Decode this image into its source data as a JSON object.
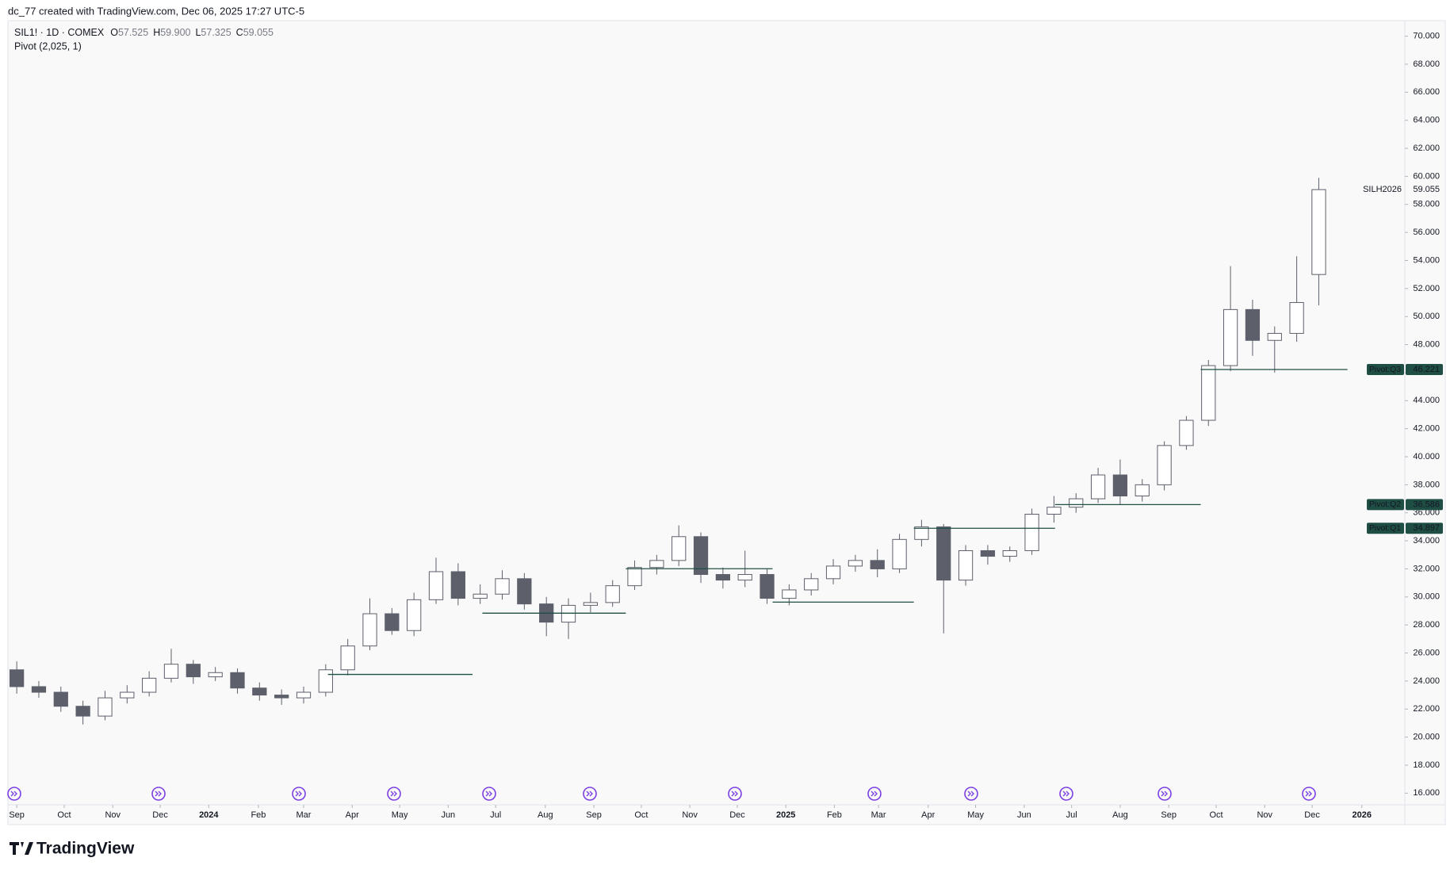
{
  "header": {
    "credit": "dc_77 created with TradingView.com, Dec 06, 2025 17:27 UTC-5",
    "brand": "TradingView"
  },
  "chart_data": {
    "type": "candlestick",
    "symbol": "SIL1! · 1D · COMEX",
    "legend": {
      "labels": [
        "O",
        "H",
        "L",
        "C"
      ],
      "values": [
        57.525,
        59.9,
        57.325,
        59.055
      ],
      "value_labels": [
        "57.525",
        "59.900",
        "57.325",
        "59.055"
      ]
    },
    "indicator": "Pivot (2,025, 1)",
    "colors": {
      "up_fill": "#ffffff",
      "down_fill": "#5d606b",
      "wick": "#5d606b",
      "pivot": "#1f4e45"
    },
    "x": [
      0,
      2,
      4,
      6,
      8,
      10,
      12,
      14,
      16,
      18,
      20,
      22,
      24,
      26,
      28,
      30,
      32,
      34,
      36,
      38,
      40,
      42,
      44,
      46,
      48,
      50,
      52,
      54,
      56,
      58,
      60,
      62,
      64,
      66,
      68,
      70,
      72,
      74,
      76,
      78,
      80,
      82,
      84,
      86,
      88,
      90,
      92,
      94,
      96,
      98,
      100,
      102,
      104,
      106,
      108,
      110,
      112,
      114,
      116,
      118
    ],
    "open": [
      24.8,
      23.6,
      23.2,
      22.2,
      21.5,
      22.8,
      23.2,
      24.2,
      25.2,
      24.3,
      24.6,
      23.5,
      23.0,
      22.8,
      23.2,
      24.8,
      26.5,
      28.8,
      27.6,
      29.8,
      31.8,
      29.9,
      30.2,
      31.3,
      29.5,
      28.2,
      29.4,
      29.6,
      30.8,
      32.1,
      32.6,
      34.3,
      31.6,
      31.2,
      31.6,
      29.9,
      30.5,
      31.3,
      32.2,
      32.6,
      32.0,
      34.1,
      35.0,
      31.2,
      33.3,
      32.9,
      33.3,
      35.9,
      36.4,
      37.0,
      38.7,
      37.2,
      38.0,
      40.8,
      42.6,
      46.5,
      50.5,
      48.3,
      48.8,
      53.0
    ],
    "high": [
      25.4,
      24.0,
      23.6,
      22.6,
      23.3,
      23.7,
      24.7,
      26.3,
      25.5,
      25.0,
      24.9,
      23.9,
      23.4,
      23.6,
      25.2,
      27.0,
      29.9,
      29.2,
      30.3,
      32.8,
      32.4,
      30.9,
      31.9,
      31.7,
      30.0,
      29.9,
      30.3,
      31.2,
      32.6,
      33.0,
      35.1,
      34.6,
      32.1,
      33.3,
      32.0,
      30.9,
      31.7,
      32.7,
      33.0,
      33.4,
      34.5,
      35.5,
      35.2,
      33.7,
      33.7,
      33.6,
      36.3,
      37.2,
      37.4,
      39.2,
      39.8,
      38.4,
      41.1,
      42.9,
      46.9,
      53.6,
      51.2,
      49.3,
      54.3,
      59.9
    ],
    "low": [
      23.1,
      22.8,
      21.8,
      20.9,
      21.2,
      22.4,
      22.9,
      23.9,
      23.8,
      24.0,
      23.1,
      22.6,
      22.3,
      22.4,
      22.9,
      24.4,
      26.2,
      27.3,
      27.2,
      29.5,
      29.4,
      29.5,
      29.8,
      29.1,
      27.2,
      27.0,
      28.9,
      29.3,
      30.5,
      31.6,
      32.2,
      31.0,
      30.6,
      30.7,
      29.5,
      29.4,
      30.1,
      30.9,
      31.8,
      31.4,
      31.7,
      33.6,
      27.4,
      30.8,
      32.3,
      32.5,
      33.0,
      35.3,
      36.0,
      36.7,
      36.6,
      36.8,
      37.6,
      40.5,
      42.2,
      46.1,
      47.2,
      46.0,
      48.2,
      50.8
    ],
    "close": [
      23.6,
      23.2,
      22.2,
      21.5,
      22.8,
      23.2,
      24.2,
      25.2,
      24.3,
      24.6,
      23.5,
      23.0,
      22.8,
      23.2,
      24.8,
      26.5,
      28.8,
      27.6,
      29.8,
      31.8,
      29.9,
      30.2,
      31.3,
      29.5,
      28.2,
      29.4,
      29.6,
      30.8,
      32.1,
      32.6,
      34.3,
      31.6,
      31.2,
      31.6,
      29.9,
      30.5,
      31.3,
      32.2,
      32.6,
      32.0,
      34.1,
      35.0,
      31.2,
      33.3,
      32.9,
      33.3,
      35.9,
      36.4,
      37.0,
      38.7,
      37.2,
      38.0,
      40.8,
      42.6,
      46.5,
      50.5,
      48.3,
      48.8,
      51.0,
      59.055
    ],
    "xlim": [
      -0.8,
      125.8
    ],
    "ylim": [
      15.17,
      71.11
    ],
    "xticks": [
      {
        "value": 0,
        "label": "Sep"
      },
      {
        "value": 4.3,
        "label": "Oct"
      },
      {
        "value": 8.7,
        "label": "Nov"
      },
      {
        "value": 13,
        "label": "Dec"
      },
      {
        "value": 17.4,
        "label": "2024"
      },
      {
        "value": 21.9,
        "label": "Feb"
      },
      {
        "value": 26,
        "label": "Mar"
      },
      {
        "value": 30.4,
        "label": "Apr"
      },
      {
        "value": 34.7,
        "label": "May"
      },
      {
        "value": 39.1,
        "label": "Jun"
      },
      {
        "value": 43.4,
        "label": "Jul"
      },
      {
        "value": 47.9,
        "label": "Aug"
      },
      {
        "value": 52.3,
        "label": "Sep"
      },
      {
        "value": 56.6,
        "label": "Oct"
      },
      {
        "value": 61,
        "label": "Nov"
      },
      {
        "value": 65.3,
        "label": "Dec"
      },
      {
        "value": 69.7,
        "label": "2025"
      },
      {
        "value": 74.1,
        "label": "Feb"
      },
      {
        "value": 78.1,
        "label": "Mar"
      },
      {
        "value": 82.6,
        "label": "Apr"
      },
      {
        "value": 86.9,
        "label": "May"
      },
      {
        "value": 91.3,
        "label": "Jun"
      },
      {
        "value": 95.6,
        "label": "Jul"
      },
      {
        "value": 100,
        "label": "Aug"
      },
      {
        "value": 104.4,
        "label": "Sep"
      },
      {
        "value": 108.7,
        "label": "Oct"
      },
      {
        "value": 113.1,
        "label": "Nov"
      },
      {
        "value": 117.4,
        "label": "Dec"
      },
      {
        "value": 121.9,
        "label": "2026"
      }
    ],
    "yticks": [
      {
        "value": 16,
        "label": "16.000"
      },
      {
        "value": 18,
        "label": "18.000"
      },
      {
        "value": 20,
        "label": "20.000"
      },
      {
        "value": 22,
        "label": "22.000"
      },
      {
        "value": 24,
        "label": "24.000"
      },
      {
        "value": 26,
        "label": "26.000"
      },
      {
        "value": 28,
        "label": "28.000"
      },
      {
        "value": 30,
        "label": "30.000"
      },
      {
        "value": 32,
        "label": "32.000"
      },
      {
        "value": 34,
        "label": "34.000"
      },
      {
        "value": 36,
        "label": "36.000"
      },
      {
        "value": 38,
        "label": "38.000"
      },
      {
        "value": 40,
        "label": "40.000"
      },
      {
        "value": 42,
        "label": "42.000"
      },
      {
        "value": 44,
        "label": "44.000"
      },
      {
        "value": 46,
        "label": "46.000"
      },
      {
        "value": 48,
        "label": "48.000"
      },
      {
        "value": 50,
        "label": "50.000"
      },
      {
        "value": 52,
        "label": "52.000"
      },
      {
        "value": 54,
        "label": "54.000"
      },
      {
        "value": 56,
        "label": "56.000"
      },
      {
        "value": 58,
        "label": "58.000"
      },
      {
        "value": 60,
        "label": "60.000"
      },
      {
        "value": 62,
        "label": "62.000"
      },
      {
        "value": 64,
        "label": "64.000"
      },
      {
        "value": 66,
        "label": "66.000"
      },
      {
        "value": 68,
        "label": "68.000"
      },
      {
        "value": 70,
        "label": "70.000"
      }
    ],
    "pivots": [
      {
        "value": 24.47,
        "x": [
          28.2,
          41.3
        ]
      },
      {
        "value": 28.84,
        "x": [
          42.2,
          55.2
        ]
      },
      {
        "value": 32.01,
        "x": [
          55.2,
          68.5
        ]
      },
      {
        "value": 29.63,
        "x": [
          68.5,
          81.3
        ]
      },
      {
        "name": "Pivot:Q1",
        "value": 34.897,
        "x": [
          81.3,
          94.1
        ]
      },
      {
        "name": "Pivot:Q2",
        "value": 36.586,
        "x": [
          94.1,
          107.3
        ]
      },
      {
        "name": "Pivot:Q3",
        "value": 46.221,
        "x": [
          107.3,
          120.6
        ]
      }
    ],
    "last_price": {
      "symbol": "SILH2026",
      "value": 59.055
    }
  }
}
